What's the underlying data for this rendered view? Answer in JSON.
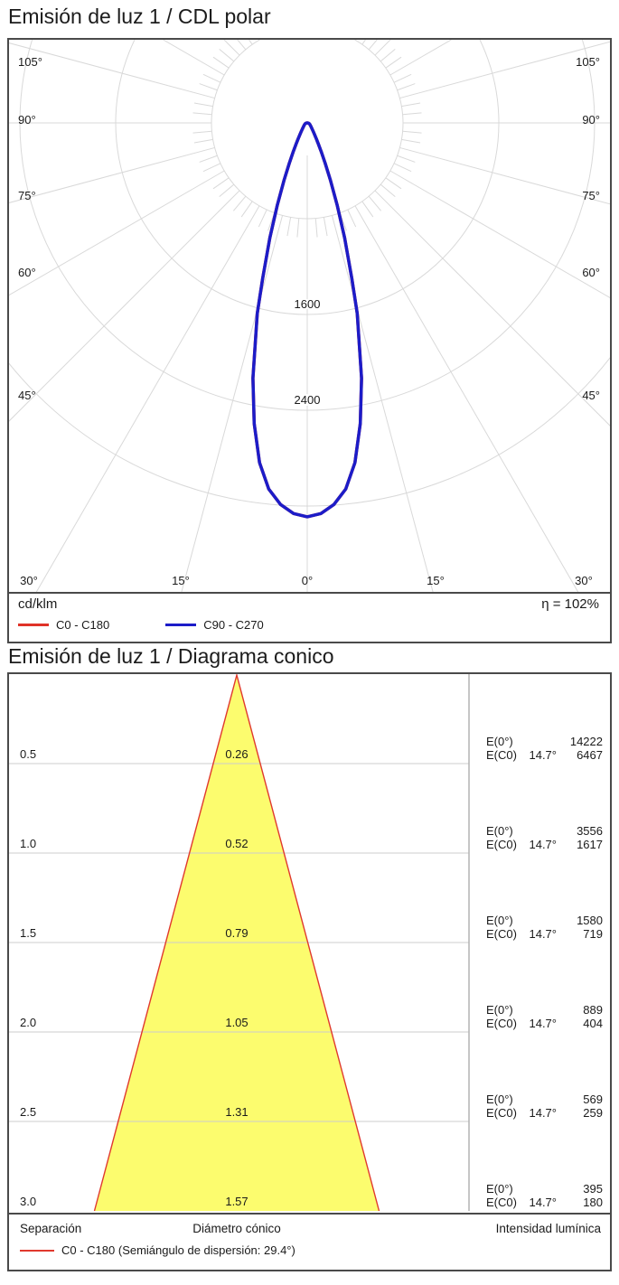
{
  "chart_data": [
    {
      "type": "line",
      "subtype": "polar_intensity_curve",
      "title": "Emisión de luz 1 / CDL polar",
      "unit": "cd/klm",
      "efficiency_text": "η = 102%",
      "radial_ticks_cd_klm": [
        800,
        1600,
        2400,
        3200
      ],
      "labeled_radial_ticks": [
        1600,
        2400
      ],
      "angle_tick_labels_sides": [
        "105°",
        "90°",
        "75°",
        "60°",
        "45°"
      ],
      "angle_tick_labels_bottom": [
        "30°",
        "15°",
        "0°",
        "15°",
        "30°"
      ],
      "minor_angle_tick_step_deg": 5,
      "major_angle_tick_step_deg": 15,
      "grid_color": "#d9d9d9",
      "series": [
        {
          "name": "C0 - C180",
          "color": "#e03228",
          "gamma_deg": [
            0,
            2,
            4,
            6,
            8,
            10,
            12,
            14.7,
            16,
            18,
            20,
            22,
            24,
            26,
            28,
            30,
            35,
            40,
            45,
            50,
            60,
            70,
            80,
            90
          ],
          "intensity_cd_klm": [
            3290,
            3265,
            3195,
            3075,
            2865,
            2550,
            2180,
            1645,
            1350,
            1010,
            730,
            520,
            370,
            265,
            195,
            150,
            90,
            60,
            45,
            35,
            25,
            18,
            10,
            0
          ]
        },
        {
          "name": "C90 - C270",
          "color": "#1c1cc8",
          "gamma_deg": [
            0,
            2,
            4,
            6,
            8,
            10,
            12,
            14.7,
            16,
            18,
            20,
            22,
            24,
            26,
            28,
            30,
            35,
            40,
            45,
            50,
            60,
            70,
            80,
            90
          ],
          "intensity_cd_klm": [
            3290,
            3265,
            3195,
            3075,
            2865,
            2550,
            2180,
            1645,
            1350,
            1010,
            730,
            520,
            370,
            265,
            195,
            150,
            90,
            60,
            45,
            35,
            25,
            18,
            10,
            0
          ]
        }
      ]
    },
    {
      "type": "table",
      "subtype": "cone_diagram",
      "title": "Emisión de luz 1 / Diagrama conico",
      "beam_half_angle_deg": 14.7,
      "cone_color": "#fcfc6e",
      "edge_color": "#e0392e",
      "columns": [
        "Separación",
        "Diámetro cónico",
        "Intensidad lumínica"
      ],
      "row_labels": {
        "e0": "E(0°)",
        "ec0": "E(C0)"
      },
      "rows": [
        {
          "separation": "0.5",
          "diameter": "0.26",
          "E0": "14222",
          "EC0_angle": "14.7°",
          "EC0": "6467"
        },
        {
          "separation": "1.0",
          "diameter": "0.52",
          "E0": "3556",
          "EC0_angle": "14.7°",
          "EC0": "1617"
        },
        {
          "separation": "1.5",
          "diameter": "0.79",
          "E0": "1580",
          "EC0_angle": "14.7°",
          "EC0": "719"
        },
        {
          "separation": "2.0",
          "diameter": "1.05",
          "E0": "889",
          "EC0_angle": "14.7°",
          "EC0": "404"
        },
        {
          "separation": "2.5",
          "diameter": "1.31",
          "E0": "569",
          "EC0_angle": "14.7°",
          "EC0": "259"
        },
        {
          "separation": "3.0",
          "diameter": "1.57",
          "E0": "395",
          "EC0_angle": "14.7°",
          "EC0": "180"
        }
      ],
      "legend": "C0 - C180 (Semiángulo de dispersión: 29.4°)"
    }
  ]
}
